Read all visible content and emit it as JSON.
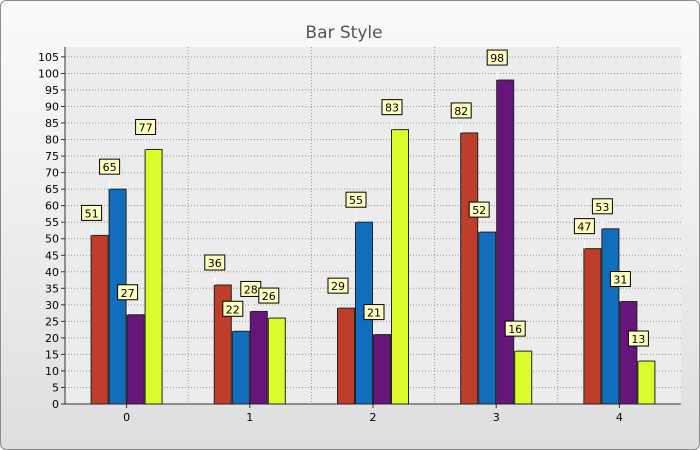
{
  "chart_data": {
    "type": "bar",
    "title": "Bar Style",
    "xlabel": "",
    "ylabel": "",
    "categories": [
      "0",
      "1",
      "2",
      "3",
      "4"
    ],
    "ylim": [
      0,
      108
    ],
    "ytick_step": 5,
    "ytick_max": 105,
    "grid": true,
    "legend": "none",
    "series": [
      {
        "color": "#be3e2b",
        "values": [
          51,
          36,
          29,
          82,
          47
        ]
      },
      {
        "color": "#116ebd",
        "values": [
          65,
          22,
          55,
          52,
          53
        ]
      },
      {
        "color": "#66157a",
        "values": [
          27,
          28,
          21,
          98,
          31
        ]
      },
      {
        "color": "#dcfc2e",
        "values": [
          77,
          26,
          83,
          16,
          13
        ]
      }
    ],
    "label_fill": "#ffffc0"
  }
}
